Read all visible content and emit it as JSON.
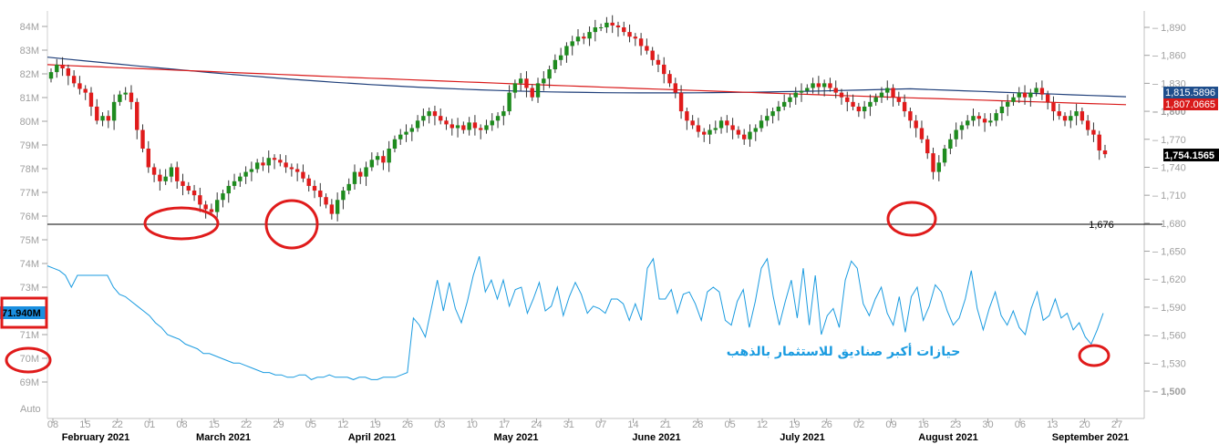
{
  "chart_data": {
    "type": "line",
    "title": "",
    "legend": "none",
    "grid": false,
    "x_day_labels": [
      "08",
      "15",
      "22",
      "01",
      "08",
      "15",
      "22",
      "29",
      "05",
      "12",
      "19",
      "26",
      "03",
      "10",
      "17",
      "24",
      "31",
      "07",
      "14",
      "21",
      "28",
      "05",
      "12",
      "19",
      "26",
      "02",
      "09",
      "16",
      "23",
      "30",
      "06",
      "13",
      "20",
      "27"
    ],
    "x_month_labels": [
      "February 2021",
      "March 2021",
      "April 2021",
      "May 2021",
      "June 2021",
      "July 2021",
      "August 2021",
      "September 2021"
    ],
    "left_axis": {
      "label": "",
      "ticks": [
        "84M",
        "83M",
        "82M",
        "81M",
        "80M",
        "79M",
        "78M",
        "77M",
        "76M",
        "75M",
        "74M",
        "73M",
        "72M",
        "71M",
        "70M",
        "69M"
      ],
      "range": [
        68.6,
        84.5
      ],
      "auto_label": "Auto"
    },
    "right_axis": {
      "label": "",
      "ticks": [
        "1,890",
        "1,860",
        "1,830",
        "1,800",
        "1,770",
        "1,740",
        "1,710",
        "1,680",
        "1,650",
        "1,620",
        "1,590",
        "1,560",
        "1,530",
        "1,500"
      ],
      "range": [
        1488,
        1907
      ]
    },
    "price_tags": {
      "ma_blue": {
        "value": "1,815.5896",
        "color": "#1f4e8c"
      },
      "ma_red": {
        "value": "1,807.0665",
        "color": "#d91a1a"
      },
      "last_price": {
        "value": "1,754.1565",
        "color": "#000000"
      },
      "holdings_last": {
        "value": "71.940M",
        "color": "#1a8fe0"
      }
    },
    "support_line": {
      "value": 1676,
      "label": "1,676"
    },
    "annotation": "حيازات أكبر صناديق للاستثمار بالذهب",
    "holdings_series": {
      "name": "",
      "color": "#1a9be0",
      "unit": "M",
      "values": [
        73.9,
        73.8,
        73.7,
        73.5,
        73.0,
        73.5,
        73.5,
        73.5,
        73.5,
        73.5,
        73.5,
        73.0,
        72.7,
        72.6,
        72.4,
        72.2,
        72.0,
        71.8,
        71.5,
        71.3,
        71.0,
        70.9,
        70.8,
        70.6,
        70.5,
        70.4,
        70.2,
        70.2,
        70.1,
        70.0,
        69.9,
        69.8,
        69.8,
        69.7,
        69.6,
        69.5,
        69.4,
        69.4,
        69.3,
        69.3,
        69.2,
        69.2,
        69.3,
        69.3,
        69.1,
        69.2,
        69.2,
        69.3,
        69.2,
        69.2,
        69.2,
        69.1,
        69.2,
        69.2,
        69.1,
        69.1,
        69.2,
        69.2,
        69.2,
        69.3,
        69.4,
        71.7,
        71.4,
        70.9,
        72.1,
        73.3,
        72.0,
        73.2,
        72.1,
        71.5,
        72.4,
        73.5,
        74.3,
        72.8,
        73.3,
        72.5,
        73.3,
        72.2,
        72.9,
        73.0,
        71.9,
        72.5,
        73.2,
        72.0,
        72.2,
        73.0,
        71.8,
        72.6,
        73.2,
        72.7,
        71.9,
        72.2,
        72.1,
        71.9,
        72.5,
        72.5,
        72.3,
        71.6,
        72.3,
        71.6,
        73.8,
        74.2,
        72.5,
        72.5,
        72.9,
        71.9,
        72.7,
        72.8,
        72.3,
        71.6,
        72.8,
        73.0,
        72.8,
        71.6,
        71.4,
        72.4,
        72.9,
        71.3,
        72.4,
        73.8,
        74.2,
        72.6,
        71.4,
        72.4,
        73.3,
        71.7,
        73.8,
        71.4,
        73.5,
        71.0,
        71.8,
        72.1,
        71.3,
        73.3,
        74.1,
        73.8,
        72.3,
        71.8,
        72.5,
        73.0,
        71.9,
        71.4,
        72.6,
        71.1,
        72.6,
        73.0,
        71.6,
        72.2,
        73.1,
        72.8,
        72.0,
        71.4,
        71.7,
        72.5,
        73.7,
        72.1,
        71.2,
        72.1,
        72.8,
        71.8,
        71.4,
        72.0,
        71.3,
        71.0,
        72.1,
        72.8,
        71.6,
        71.8,
        72.5,
        71.7,
        71.9,
        71.2,
        71.5,
        70.9,
        70.6,
        71.2,
        71.9
      ]
    },
    "price_series": {
      "name": "",
      "up_color": "#1e8b1e",
      "down_color": "#e01b1b",
      "ohlc_start": [
        1835,
        1845,
        1825,
        1842
      ],
      "closes": [
        1842,
        1850,
        1846,
        1838,
        1830,
        1824,
        1820,
        1805,
        1790,
        1795,
        1790,
        1810,
        1818,
        1820,
        1810,
        1780,
        1760,
        1740,
        1732,
        1725,
        1730,
        1740,
        1725,
        1720,
        1715,
        1710,
        1700,
        1695,
        1692,
        1705,
        1712,
        1720,
        1725,
        1730,
        1735,
        1738,
        1745,
        1742,
        1750,
        1748,
        1745,
        1740,
        1738,
        1735,
        1728,
        1720,
        1715,
        1708,
        1700,
        1690,
        1705,
        1715,
        1722,
        1735,
        1730,
        1740,
        1748,
        1752,
        1745,
        1760,
        1770,
        1775,
        1778,
        1782,
        1790,
        1795,
        1800,
        1795,
        1790,
        1786,
        1782,
        1785,
        1780,
        1788,
        1782,
        1780,
        1785,
        1790,
        1795,
        1800,
        1820,
        1830,
        1835,
        1825,
        1815,
        1830,
        1835,
        1845,
        1855,
        1860,
        1870,
        1875,
        1880,
        1878,
        1885,
        1890,
        1890,
        1895,
        1892,
        1890,
        1885,
        1880,
        1878,
        1870,
        1865,
        1855,
        1850,
        1840,
        1830,
        1820,
        1800,
        1790,
        1785,
        1778,
        1775,
        1780,
        1782,
        1790,
        1785,
        1780,
        1775,
        1770,
        1778,
        1782,
        1790,
        1795,
        1800,
        1805,
        1810,
        1815,
        1820,
        1822,
        1825,
        1830,
        1826,
        1830,
        1825,
        1820,
        1815,
        1810,
        1805,
        1800,
        1805,
        1810,
        1815,
        1820,
        1825,
        1815,
        1810,
        1800,
        1790,
        1782,
        1770,
        1755,
        1735,
        1745,
        1760,
        1770,
        1780,
        1785,
        1790,
        1795,
        1792,
        1788,
        1790,
        1798,
        1805,
        1810,
        1815,
        1820,
        1815,
        1820,
        1825,
        1818,
        1810,
        1800,
        1795,
        1790,
        1795,
        1800,
        1790,
        1780,
        1775,
        1758,
        1754
      ]
    },
    "ma_series": [
      {
        "name": "",
        "color": "#1f3f7a",
        "start": 1858,
        "mid": 1810,
        "end": 1815.5896
      },
      {
        "name": "",
        "color": "#d91a1a",
        "start": 1850,
        "mid": 1830,
        "end": 1807.0665
      }
    ]
  },
  "colors": {
    "axis": "#a0a0a0",
    "highlight_circle": "#e01b1b"
  }
}
